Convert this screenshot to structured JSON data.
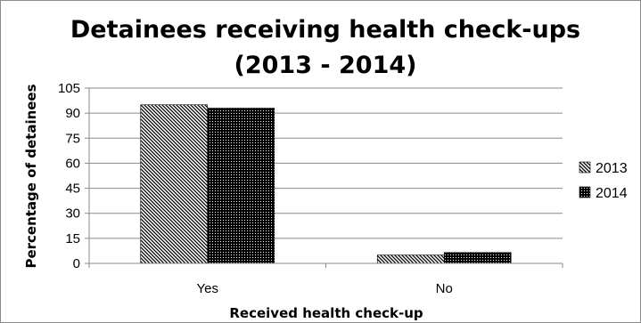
{
  "chart_data": {
    "type": "bar",
    "title_lines": [
      "Detainees receiving health check-ups",
      "(2013 - 2014)"
    ],
    "xlabel": "Received health  check-up",
    "ylabel": "Percentage of detainees",
    "categories": [
      "Yes",
      "No"
    ],
    "series": [
      {
        "name": "2013",
        "values": [
          95,
          5
        ]
      },
      {
        "name": "2014",
        "values": [
          93,
          6.5
        ]
      }
    ],
    "ylim": [
      0,
      105
    ],
    "yticks": [
      0,
      15,
      30,
      45,
      60,
      75,
      90,
      105
    ],
    "grid": true,
    "legend_position": "right"
  }
}
